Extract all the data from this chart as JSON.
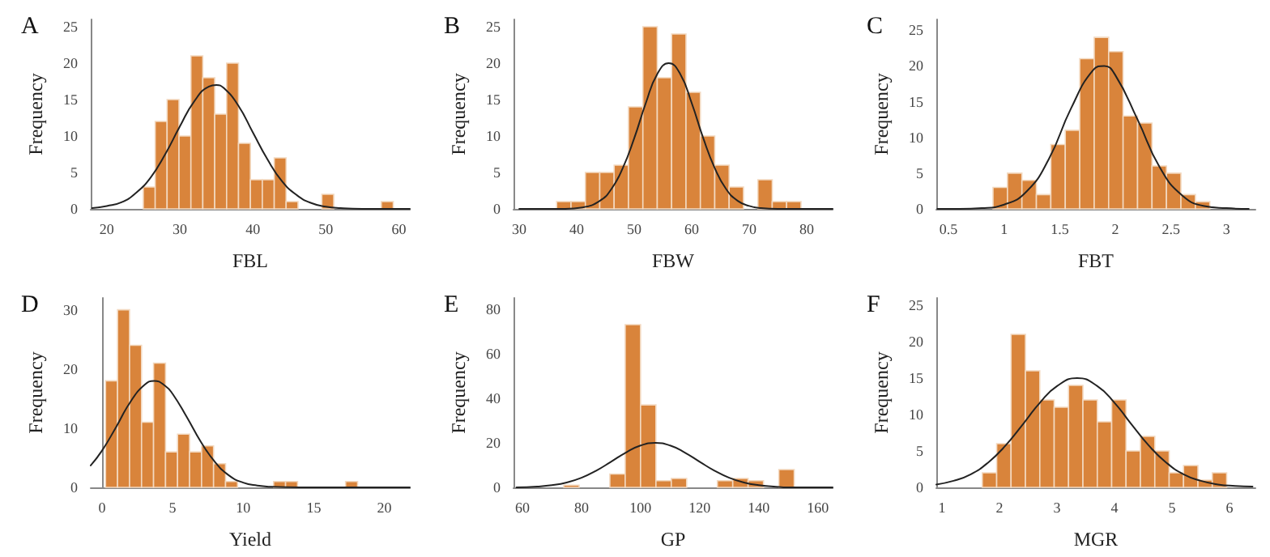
{
  "chart_data": [
    {
      "type": "histogram",
      "title": "A",
      "xlabel": "FBL",
      "ylabel": "Frequency",
      "color": "#d9843b",
      "xlim": [
        17.8,
        61.5
      ],
      "ylim": [
        0,
        26
      ],
      "xticks": [
        20,
        30,
        40,
        50,
        60
      ],
      "yticks": [
        0,
        5,
        10,
        15,
        20,
        25
      ],
      "bins": [
        25,
        26.63,
        28.26,
        29.89,
        31.52,
        33.15,
        34.78,
        36.41,
        38.04,
        39.67,
        41.3,
        42.93,
        44.56,
        46.19,
        47.82,
        49.45,
        51.08,
        52.71,
        54.34,
        55.97,
        57.6,
        59.23
      ],
      "values": [
        3,
        12,
        15,
        10,
        21,
        18,
        13,
        20,
        9,
        4,
        4,
        7,
        1,
        0,
        0,
        2,
        0,
        0,
        0,
        0,
        1
      ],
      "series": [
        {
          "type": "line",
          "color": "#222222",
          "marker": "none",
          "x": [
            18,
            20,
            22,
            24,
            26,
            28,
            30,
            32,
            34,
            35,
            36,
            38,
            40,
            42,
            44,
            46,
            48,
            50,
            52,
            55,
            60,
            61.5
          ],
          "values": [
            0.1,
            0.4,
            0.9,
            2.2,
            4.3,
            7.5,
            11.3,
            14.8,
            16.8,
            17,
            16.6,
            14.2,
            10.5,
            6.8,
            3.8,
            1.9,
            0.8,
            0.3,
            0.1,
            0,
            0,
            0
          ]
        }
      ]
    },
    {
      "type": "histogram",
      "title": "B",
      "xlabel": "FBW",
      "ylabel": "Frequency",
      "color": "#d9843b",
      "xlim": [
        29,
        84.5
      ],
      "ylim": [
        0,
        26
      ],
      "xticks": [
        30,
        40,
        50,
        60,
        70,
        80
      ],
      "yticks": [
        0,
        5,
        10,
        15,
        20,
        25
      ],
      "bins": [
        36.5,
        39,
        41.5,
        44,
        46.5,
        49,
        51.5,
        54,
        56.5,
        59,
        61.5,
        64,
        66.5,
        69,
        71.5,
        74,
        76.5,
        79
      ],
      "values": [
        1,
        1,
        5,
        5,
        6,
        14,
        25,
        18,
        24,
        16,
        10,
        6,
        3,
        0,
        4,
        1,
        1
      ],
      "series": [
        {
          "type": "line",
          "color": "#222222",
          "marker": "none",
          "x": [
            30,
            34,
            38,
            41,
            44,
            46,
            48,
            50,
            52,
            54,
            56,
            58,
            60,
            62,
            64,
            66,
            68,
            70,
            72,
            75,
            80,
            84.5
          ],
          "values": [
            0,
            0,
            0,
            0.2,
            1.1,
            2.7,
            5.6,
            9.7,
            14.5,
            18.5,
            20,
            18.5,
            14.5,
            9.7,
            5.6,
            2.7,
            1.1,
            0.4,
            0.1,
            0,
            0,
            0
          ]
        }
      ]
    },
    {
      "type": "histogram",
      "title": "C",
      "xlabel": "FBT",
      "ylabel": "Frequency",
      "color": "#d9843b",
      "xlim": [
        0.39,
        3.26
      ],
      "ylim": [
        0,
        26.5
      ],
      "xticks": [
        0.5,
        1,
        1.5,
        2,
        2.5,
        3
      ],
      "yticks": [
        0,
        5,
        10,
        15,
        20,
        25
      ],
      "bins": [
        0.9,
        1.03,
        1.16,
        1.29,
        1.42,
        1.55,
        1.68,
        1.81,
        1.94,
        2.07,
        2.2,
        2.33,
        2.46,
        2.59,
        2.72,
        2.85
      ],
      "values": [
        3,
        5,
        4,
        2,
        9,
        11,
        21,
        24,
        22,
        13,
        12,
        6,
        5,
        2,
        1
      ],
      "series": [
        {
          "type": "line",
          "color": "#222222",
          "marker": "none",
          "x": [
            0.4,
            0.6,
            0.8,
            1,
            1.2,
            1.4,
            1.6,
            1.8,
            1.9,
            2,
            2.2,
            2.4,
            2.6,
            2.8,
            3,
            3.2
          ],
          "values": [
            0,
            0,
            0.1,
            0.6,
            2.4,
            6.9,
            14,
            19.4,
            20,
            18.7,
            12.5,
            5.8,
            1.9,
            0.4,
            0.1,
            0
          ]
        }
      ]
    },
    {
      "type": "histogram",
      "title": "D",
      "xlabel": "Yield",
      "ylabel": "Frequency",
      "color": "#d9843b",
      "xlim": [
        -0.8,
        21.8
      ],
      "ylim": [
        0,
        32
      ],
      "xticks": [
        0,
        5,
        10,
        15,
        20
      ],
      "yticks": [
        0,
        10,
        20,
        30
      ],
      "bins": [
        0.25,
        1.1,
        1.95,
        2.8,
        3.65,
        4.5,
        5.35,
        6.2,
        7.05,
        7.9,
        8.75,
        9.6,
        10.45,
        11.3,
        12.15,
        13,
        13.85,
        14.7,
        15.55,
        16.4,
        17.25,
        18.1
      ],
      "values": [
        18,
        30,
        24,
        11,
        21,
        6,
        9,
        6,
        7,
        4,
        1,
        0,
        0,
        0,
        1,
        1,
        0,
        0,
        0,
        0,
        1
      ],
      "series": [
        {
          "type": "line",
          "color": "#222222",
          "marker": "none",
          "x": [
            -0.8,
            0,
            1,
            2,
            3,
            3.7,
            4.5,
            5,
            6,
            7,
            8,
            9,
            10,
            11,
            12,
            14,
            16,
            20,
            21.8
          ],
          "values": [
            3.7,
            6.2,
            10.2,
            14.4,
            17.3,
            18,
            17.1,
            15.8,
            11.9,
            7.7,
            4.3,
            2,
            0.8,
            0.3,
            0.1,
            0,
            0,
            0,
            0
          ]
        }
      ]
    },
    {
      "type": "histogram",
      "title": "E",
      "xlabel": "GP",
      "ylabel": "Frequency",
      "color": "#d9843b",
      "xlim": [
        57,
        165
      ],
      "ylim": [
        0,
        85
      ],
      "xticks": [
        60,
        80,
        100,
        120,
        140,
        160
      ],
      "yticks": [
        0,
        20,
        40,
        60,
        80
      ],
      "bins": [
        74,
        79.2,
        84.4,
        89.6,
        94.8,
        100,
        105.2,
        110.4,
        115.6,
        120.8,
        126,
        131.2,
        136.4,
        141.6,
        146.8,
        152
      ],
      "values": [
        1,
        0,
        0,
        6,
        73,
        37,
        3,
        4,
        0,
        0,
        3,
        4,
        3,
        0,
        8
      ],
      "series": [
        {
          "type": "line",
          "color": "#222222",
          "marker": "none",
          "x": [
            58,
            65,
            70,
            75,
            80,
            85,
            90,
            95,
            100,
            105,
            110,
            115,
            120,
            125,
            130,
            135,
            140,
            145,
            150,
            155,
            160,
            165
          ],
          "values": [
            0,
            0.4,
            1,
            2.2,
            4.3,
            7.5,
            11.5,
            15.6,
            18.8,
            20,
            18.8,
            15.6,
            11.5,
            7.5,
            4.3,
            2.2,
            1,
            0.4,
            0,
            0,
            0,
            0
          ]
        }
      ]
    },
    {
      "type": "histogram",
      "title": "F",
      "xlabel": "MGR",
      "ylabel": "Frequency",
      "color": "#d9843b",
      "xlim": [
        0.9,
        6.45
      ],
      "ylim": [
        0,
        26
      ],
      "xticks": [
        1,
        2,
        3,
        4,
        5,
        6
      ],
      "yticks": [
        0,
        5,
        10,
        15,
        20,
        25
      ],
      "bins": [
        1.7,
        1.95,
        2.2,
        2.45,
        2.7,
        2.95,
        3.2,
        3.45,
        3.7,
        3.95,
        4.2,
        4.45,
        4.7,
        4.95,
        5.2,
        5.45,
        5.7,
        5.95
      ],
      "values": [
        2,
        6,
        21,
        16,
        12,
        11,
        14,
        12,
        9,
        12,
        5,
        7,
        5,
        2,
        3,
        1,
        2
      ],
      "series": [
        {
          "type": "line",
          "color": "#222222",
          "marker": "none",
          "x": [
            0.9,
            1.2,
            1.5,
            1.8,
            2.1,
            2.4,
            2.7,
            3,
            3.35,
            3.7,
            4,
            4.3,
            4.6,
            4.9,
            5.2,
            5.5,
            5.8,
            6.1,
            6.4
          ],
          "values": [
            0.4,
            0.9,
            1.8,
            3.4,
            5.7,
            8.6,
            11.6,
            13.9,
            15,
            13.9,
            11.6,
            8.6,
            5.7,
            3.4,
            1.8,
            0.9,
            0.4,
            0.2,
            0.1
          ]
        }
      ]
    }
  ]
}
